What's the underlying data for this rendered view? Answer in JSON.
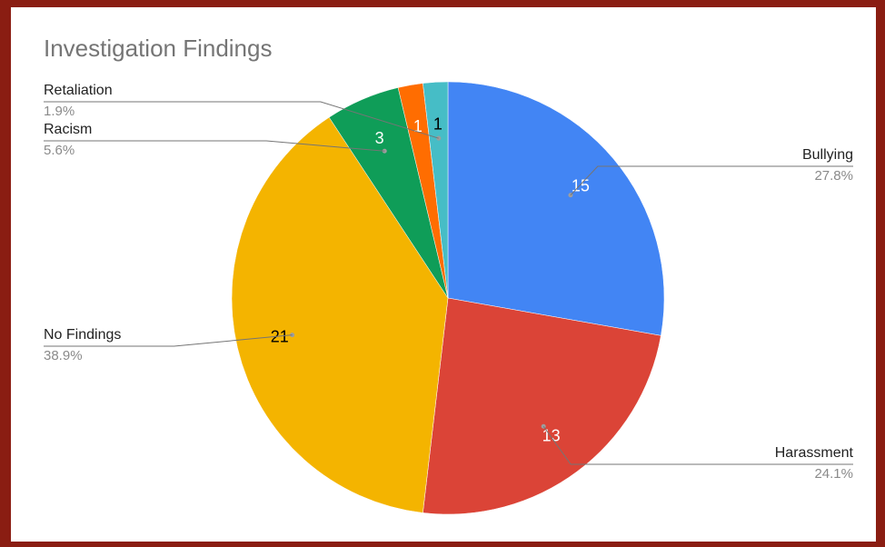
{
  "chart_data": {
    "type": "pie",
    "title": "Investigation Findings",
    "categories": [
      "Bullying",
      "Harassment",
      "No Findings",
      "Racism",
      null,
      "Retaliation"
    ],
    "values": [
      15,
      13,
      21,
      3,
      1,
      1
    ],
    "percent_labels": [
      "27.8%",
      "24.1%",
      "38.9%",
      "5.6%",
      null,
      "1.9%"
    ],
    "colors": [
      "#4285f4",
      "#db4437",
      "#f4b400",
      "#0f9d58",
      "#ff6d01",
      "#46bdc6"
    ]
  }
}
